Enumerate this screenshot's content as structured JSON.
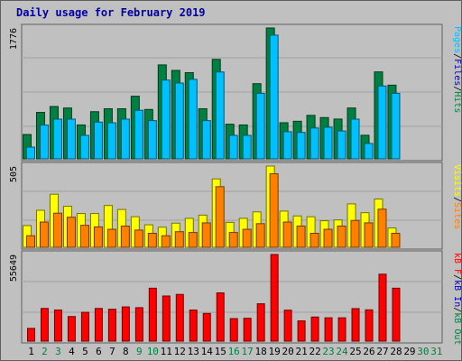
{
  "title": "Daily usage for February 2019",
  "chart_data": [
    {
      "type": "bar",
      "panel": "top",
      "categories": [
        "1",
        "2",
        "3",
        "4",
        "5",
        "6",
        "7",
        "8",
        "9",
        "10",
        "11",
        "12",
        "13",
        "14",
        "15",
        "16",
        "17",
        "18",
        "19",
        "20",
        "21",
        "22",
        "23",
        "24",
        "25",
        "26",
        "27",
        "28",
        "29",
        "30",
        "31"
      ],
      "ymax_label": "1776",
      "ymax": 1776,
      "series": [
        {
          "name": "Hits",
          "color": "#008040",
          "values": [
            330,
            630,
            710,
            690,
            460,
            640,
            680,
            680,
            850,
            670,
            1275,
            1200,
            1170,
            680,
            1350,
            470,
            460,
            1020,
            1776,
            490,
            510,
            590,
            560,
            540,
            690,
            320,
            1180,
            1000,
            0,
            0,
            0
          ]
        },
        {
          "name": "Files",
          "color": "#00c0ff",
          "values": [
            220,
            520,
            600,
            600,
            380,
            560,
            550,
            600,
            720,
            580,
            1130,
            1090,
            1140,
            580,
            1240,
            380,
            380,
            950,
            1740,
            430,
            420,
            480,
            490,
            440,
            600,
            270,
            1050,
            950,
            0,
            0,
            0
          ]
        }
      ],
      "axis_labels": [
        {
          "text": "Pages",
          "color": "#00c0ff"
        },
        {
          "text": "/",
          "color": "#000000"
        },
        {
          "text": "Files",
          "color": "#0000a6"
        },
        {
          "text": "/",
          "color": "#000000"
        },
        {
          "text": "Hits",
          "color": "#008040"
        }
      ]
    },
    {
      "type": "bar",
      "panel": "middle",
      "categories": [
        "1",
        "2",
        "3",
        "4",
        "5",
        "6",
        "7",
        "8",
        "9",
        "10",
        "11",
        "12",
        "13",
        "14",
        "15",
        "16",
        "17",
        "18",
        "19",
        "20",
        "21",
        "22",
        "23",
        "24",
        "25",
        "26",
        "27",
        "28",
        "29",
        "30",
        "31"
      ],
      "ymax_label": "505",
      "ymax": 505,
      "series": [
        {
          "name": "Visits",
          "color": "#ffff00",
          "values": [
            135,
            230,
            330,
            255,
            210,
            210,
            260,
            235,
            190,
            140,
            125,
            150,
            180,
            200,
            425,
            155,
            180,
            220,
            505,
            225,
            195,
            190,
            165,
            170,
            270,
            215,
            300,
            120,
            0,
            0,
            0
          ]
        },
        {
          "name": "Sites",
          "color": "#ff8000",
          "values": [
            100,
            185,
            240,
            215,
            165,
            155,
            140,
            160,
            135,
            115,
            100,
            125,
            120,
            180,
            405,
            120,
            140,
            175,
            485,
            185,
            160,
            115,
            140,
            160,
            195,
            180,
            265,
            115,
            0,
            0,
            0
          ]
        }
      ],
      "axis_labels": [
        {
          "text": "Visits",
          "color": "#ffff00"
        },
        {
          "text": "/",
          "color": "#000000"
        },
        {
          "text": "Sites",
          "color": "#ff8000"
        }
      ]
    },
    {
      "type": "bar",
      "panel": "bottom",
      "categories": [
        "1",
        "2",
        "3",
        "4",
        "5",
        "6",
        "7",
        "8",
        "9",
        "10",
        "11",
        "12",
        "13",
        "14",
        "15",
        "16",
        "17",
        "18",
        "19",
        "20",
        "21",
        "22",
        "23",
        "24",
        "25",
        "26",
        "27",
        "28",
        "29",
        "30",
        "31"
      ],
      "ymax_label": "55649",
      "ymax": 55649,
      "series": [
        {
          "name": "kB F",
          "color": "#ff0000",
          "values": [
            8200,
            21000,
            20000,
            15800,
            18500,
            21000,
            20500,
            22000,
            21500,
            34000,
            29000,
            30000,
            20000,
            17800,
            31000,
            14500,
            14700,
            24000,
            55649,
            19900,
            13000,
            15500,
            15000,
            15000,
            20900,
            20100,
            43000,
            34000,
            0,
            0,
            0
          ]
        }
      ],
      "axis_labels": [
        {
          "text": "kB F",
          "color": "#ff0000"
        },
        {
          "text": "/",
          "color": "#000000"
        },
        {
          "text": "kB In",
          "color": "#0000a6"
        },
        {
          "text": "/",
          "color": "#000000"
        },
        {
          "text": "kB Out",
          "color": "#008040"
        }
      ]
    }
  ],
  "day_colors": {
    "weekday": "#000000",
    "weekend": "#008040"
  },
  "weekend_days": [
    "2",
    "3",
    "9",
    "10",
    "16",
    "17",
    "23",
    "24",
    "30",
    "31"
  ]
}
